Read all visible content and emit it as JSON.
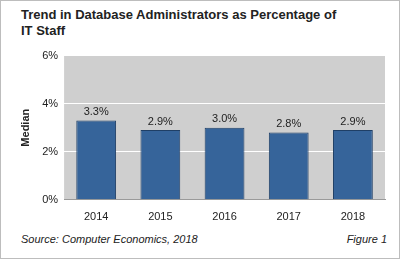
{
  "chart_data": {
    "type": "bar",
    "title": "Trend in Database Administrators as Percentage of IT Staff",
    "y_label": "Median",
    "categories": [
      "2014",
      "2015",
      "2016",
      "2017",
      "2018"
    ],
    "values": [
      3.3,
      2.9,
      3.0,
      2.8,
      2.9
    ],
    "value_labels": [
      "3.3%",
      "2.9%",
      "3.0%",
      "2.8%",
      "2.9%"
    ],
    "data_labels": true,
    "color": "#36649a",
    "ylim": [
      0,
      6
    ],
    "yticks": [
      {
        "value": 0,
        "label": "0%"
      },
      {
        "value": 2,
        "label": "2%"
      },
      {
        "value": 4,
        "label": "4%"
      },
      {
        "value": 6,
        "label": "6%"
      }
    ],
    "grid": true,
    "annotations": [
      "Source: Computer Economics, 2018",
      "Figure 1"
    ]
  }
}
